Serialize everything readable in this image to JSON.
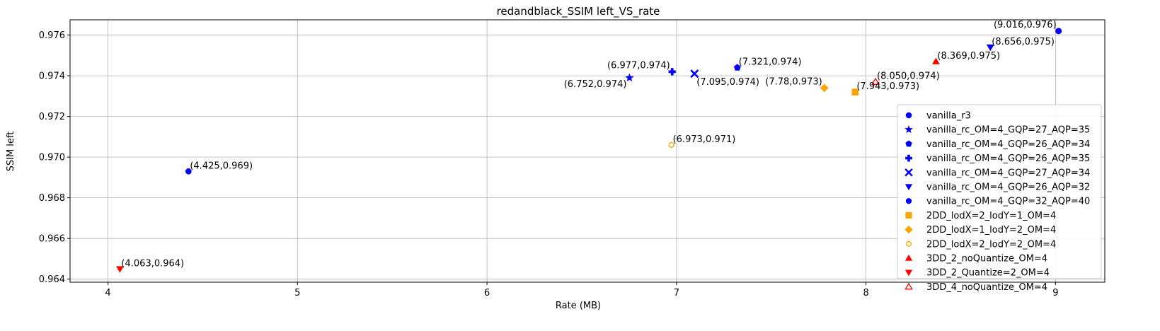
{
  "chart_data": {
    "type": "scatter",
    "title": "redandblack_SSIM left_VS_rate",
    "xlabel": "Rate (MB)",
    "ylabel": "SSIM left",
    "xlim": [
      3.8,
      9.26
    ],
    "ylim": [
      0.96385,
      0.97675
    ],
    "xticks": [
      4,
      5,
      6,
      7,
      8,
      9
    ],
    "xtick_labels": [
      "4",
      "5",
      "6",
      "7",
      "8",
      "9"
    ],
    "yticks": [
      0.964,
      0.966,
      0.968,
      0.97,
      0.972,
      0.974,
      0.976
    ],
    "ytick_labels": [
      "0.964",
      "0.966",
      "0.968",
      "0.970",
      "0.972",
      "0.974",
      "0.976"
    ],
    "grid": true,
    "legend_position": "right",
    "series": [
      {
        "name": "vanilla_r3",
        "marker": "circle",
        "color": "#0000ff",
        "fill": true,
        "x": 9.016,
        "y": 0.9762,
        "label": "(9.016,0.976)",
        "label_pos": "top-left"
      },
      {
        "name": "vanilla_rc_OM=4_GQP=27_AQP=35",
        "marker": "star",
        "color": "#0000ff",
        "fill": true,
        "x": 6.752,
        "y": 0.9739,
        "label": "(6.752,0.974)",
        "label_pos": "bottom-left"
      },
      {
        "name": "vanilla_rc_OM=4_GQP=26_AQP=34",
        "marker": "pentagon",
        "color": "#0000ff",
        "fill": true,
        "x": 7.321,
        "y": 0.9744,
        "label": "(7.321,0.974)",
        "label_pos": "top-right"
      },
      {
        "name": "vanilla_rc_OM=4_GQP=26_AQP=35",
        "marker": "plus",
        "color": "#0000ff",
        "fill": true,
        "x": 6.977,
        "y": 0.9742,
        "label": "(6.977,0.974)",
        "label_pos": "top-left"
      },
      {
        "name": "vanilla_rc_OM=4_GQP=27_AQP=34",
        "marker": "x",
        "color": "#0000ff",
        "fill": true,
        "x": 7.095,
        "y": 0.9741,
        "label": "(7.095,0.974)",
        "label_pos": "bottom-right"
      },
      {
        "name": "vanilla_rc_OM=4_GQP=26_AQP=32",
        "marker": "triangle-down",
        "color": "#0000ff",
        "fill": true,
        "x": 8.656,
        "y": 0.9754,
        "label": "(8.656,0.975)",
        "label_pos": "top-right"
      },
      {
        "name": "vanilla_rc_OM=4_GQP=32_AQP=40",
        "marker": "octagon",
        "color": "#0000ff",
        "fill": true,
        "x": 4.425,
        "y": 0.9693,
        "label": "(4.425,0.969)",
        "label_pos": "top-right"
      },
      {
        "name": "2DD_lodX=2_lodY=1_OM=4",
        "marker": "square",
        "color": "#ffa500",
        "fill": true,
        "x": 7.943,
        "y": 0.9732,
        "label": "(7.943,0.973)",
        "label_pos": "top-right"
      },
      {
        "name": "2DD_lodX=1_lodY=2_OM=4",
        "marker": "diamond",
        "color": "#ffa500",
        "fill": true,
        "x": 7.78,
        "y": 0.9734,
        "label": "(7.78,0.973)",
        "label_pos": "top-left"
      },
      {
        "name": "2DD_lodX=2_lodY=2_OM=4",
        "marker": "octagon-open",
        "color": "#ffa500",
        "fill": false,
        "x": 6.973,
        "y": 0.9706,
        "label": "(6.973,0.971)",
        "label_pos": "top-right"
      },
      {
        "name": "3DD_2_noQuantize_OM=4",
        "marker": "triangle-up",
        "color": "#ff0000",
        "fill": true,
        "x": 8.369,
        "y": 0.9747,
        "label": "(8.369,0.975)",
        "label_pos": "top-right"
      },
      {
        "name": "3DD_2_Quantize=2_OM=4",
        "marker": "triangle-down",
        "color": "#ff0000",
        "fill": true,
        "x": 4.063,
        "y": 0.9645,
        "label": "(4.063,0.964)",
        "label_pos": "top-right"
      },
      {
        "name": "3DD_4_noQuantize_OM=4",
        "marker": "triangle-up",
        "color": "#ff0000",
        "fill": false,
        "x": 8.05,
        "y": 0.9737,
        "label": "(8.050,0.974)",
        "label_pos": "top-right"
      }
    ]
  }
}
